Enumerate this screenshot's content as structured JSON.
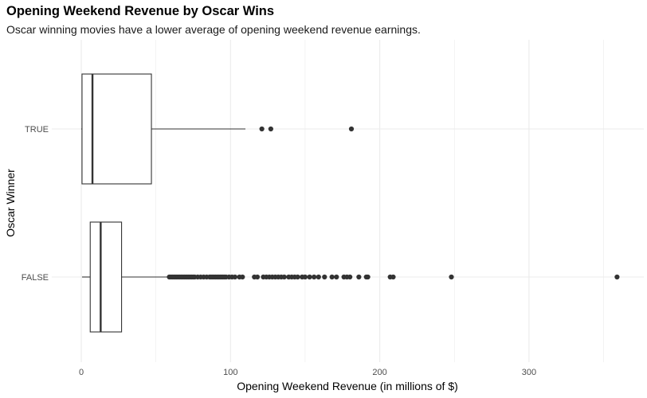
{
  "chart_data": {
    "type": "boxplot",
    "orientation": "horizontal",
    "title": "Opening Weekend Revenue by Oscar Wins",
    "subtitle": "Oscar winning movies have a lower average of opening weekend revenue earnings.",
    "xlabel": "Opening Weekend Revenue (in millions of $)",
    "ylabel": "Oscar Winner",
    "xlim": [
      -10,
      375
    ],
    "xticks": [
      0,
      100,
      200,
      300
    ],
    "grid": true,
    "legend": "none",
    "colors": {
      "box_stroke": "#333333",
      "outlier": "#333333",
      "grid": "#ebebeb"
    },
    "categories": [
      "TRUE",
      "FALSE"
    ],
    "boxes": [
      {
        "category": "TRUE",
        "min": 0,
        "q1": 0.5,
        "median": 7.5,
        "q3": 47,
        "max": 110,
        "outliers": [
          121,
          127,
          181
        ]
      },
      {
        "category": "FALSE",
        "min": 0.5,
        "q1": 6,
        "median": 13,
        "q3": 27,
        "max": 58,
        "outliers": [
          59,
          60,
          61,
          62,
          63,
          64,
          65,
          66,
          67,
          68,
          69,
          70,
          71,
          72,
          73,
          74,
          75,
          76,
          78,
          80,
          82,
          84,
          86,
          87,
          88,
          89,
          90,
          91,
          92,
          93,
          94,
          95,
          96,
          97,
          99,
          101,
          103,
          106,
          108,
          116,
          118,
          122,
          124,
          126,
          128,
          130,
          132,
          134,
          136,
          139,
          141,
          143,
          145,
          148,
          150,
          153,
          156,
          159,
          163,
          168,
          171,
          176,
          178,
          180,
          186,
          191,
          192,
          207,
          209,
          248,
          359
        ]
      }
    ]
  }
}
